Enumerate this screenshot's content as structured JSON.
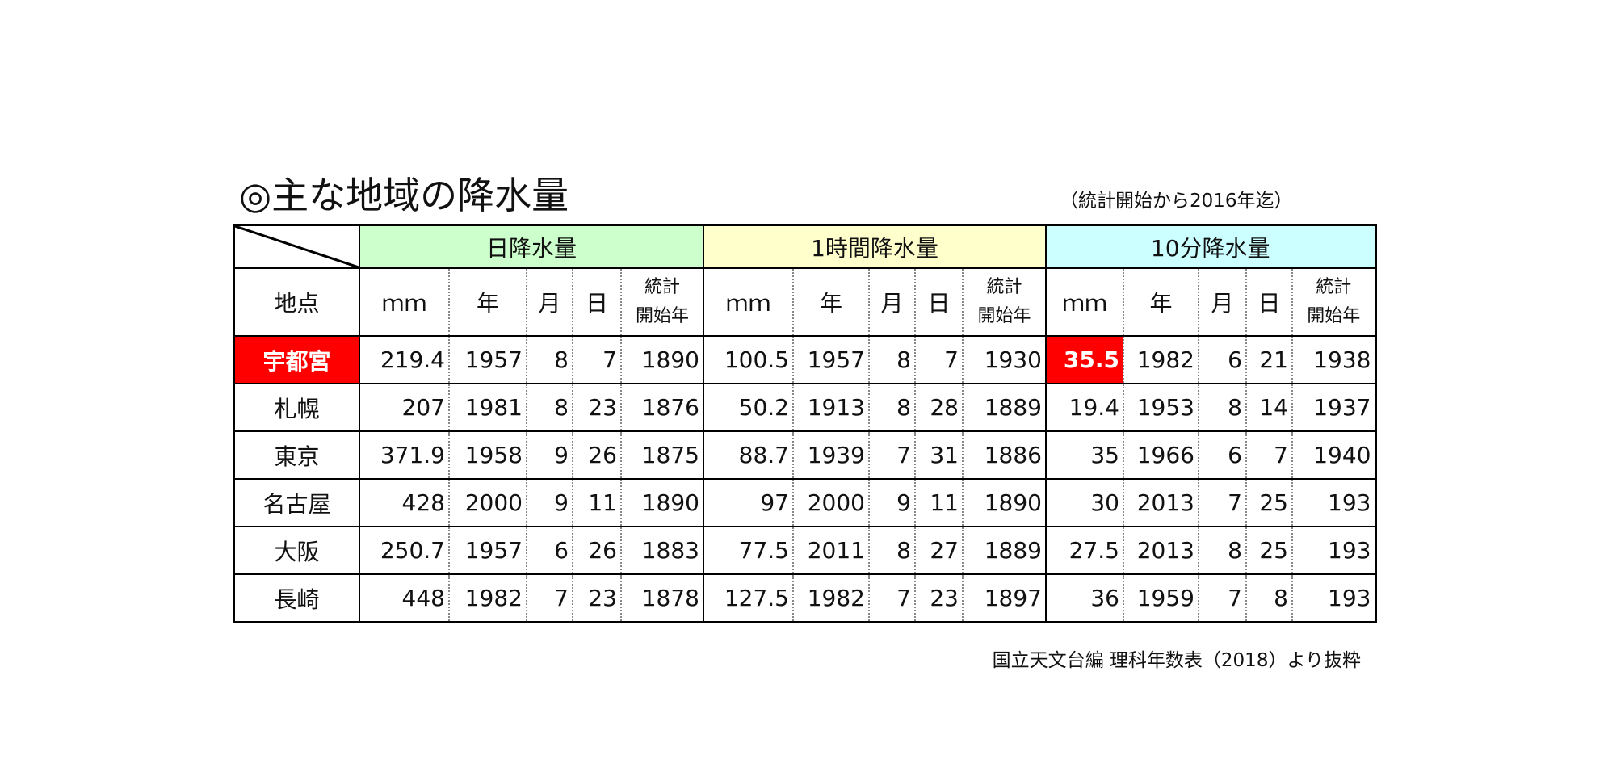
{
  "title": "◎主な地域の降水量",
  "note": "（統計開始から2016年迄）",
  "table": {
    "groups": [
      "日降水量",
      "1時間降水量",
      "10分降水量"
    ],
    "group_colors": [
      "#ccffcc",
      "#ffffcc",
      "#ccffff"
    ],
    "columns": [
      "地点",
      "ｍｍ",
      "年",
      "月",
      "日",
      "統計\n開始年"
    ],
    "highlight_color": "#ff0000",
    "highlighted": [
      [
        0,
        0
      ],
      [
        0,
        11
      ]
    ],
    "rows": [
      [
        "宇都宮",
        "219.4",
        "1957",
        "8",
        "7",
        "1890",
        "100.5",
        "1957",
        "8",
        "7",
        "1930",
        "35.5",
        "1982",
        "6",
        "21",
        "1938"
      ],
      [
        "札幌",
        "207",
        "1981",
        "8",
        "23",
        "1876",
        "50.2",
        "1913",
        "8",
        "28",
        "1889",
        "19.4",
        "1953",
        "8",
        "14",
        "1937"
      ],
      [
        "東京",
        "371.9",
        "1958",
        "9",
        "26",
        "1875",
        "88.7",
        "1939",
        "7",
        "31",
        "1886",
        "35",
        "1966",
        "6",
        "7",
        "1940"
      ],
      [
        "名古屋",
        "428",
        "2000",
        "9",
        "11",
        "1890",
        "97",
        "2000",
        "9",
        "11",
        "1890",
        "30",
        "2013",
        "7",
        "25",
        "193"
      ],
      [
        "大阪",
        "250.7",
        "1957",
        "6",
        "26",
        "1883",
        "77.5",
        "2011",
        "8",
        "27",
        "1889",
        "27.5",
        "2013",
        "8",
        "25",
        "193"
      ],
      [
        "長崎",
        "448",
        "1982",
        "7",
        "23",
        "1878",
        "127.5",
        "1982",
        "7",
        "23",
        "1897",
        "36",
        "1959",
        "7",
        "8",
        "193"
      ]
    ]
  },
  "source": "国立天文台編 理科年数表（2018）より抜粋"
}
